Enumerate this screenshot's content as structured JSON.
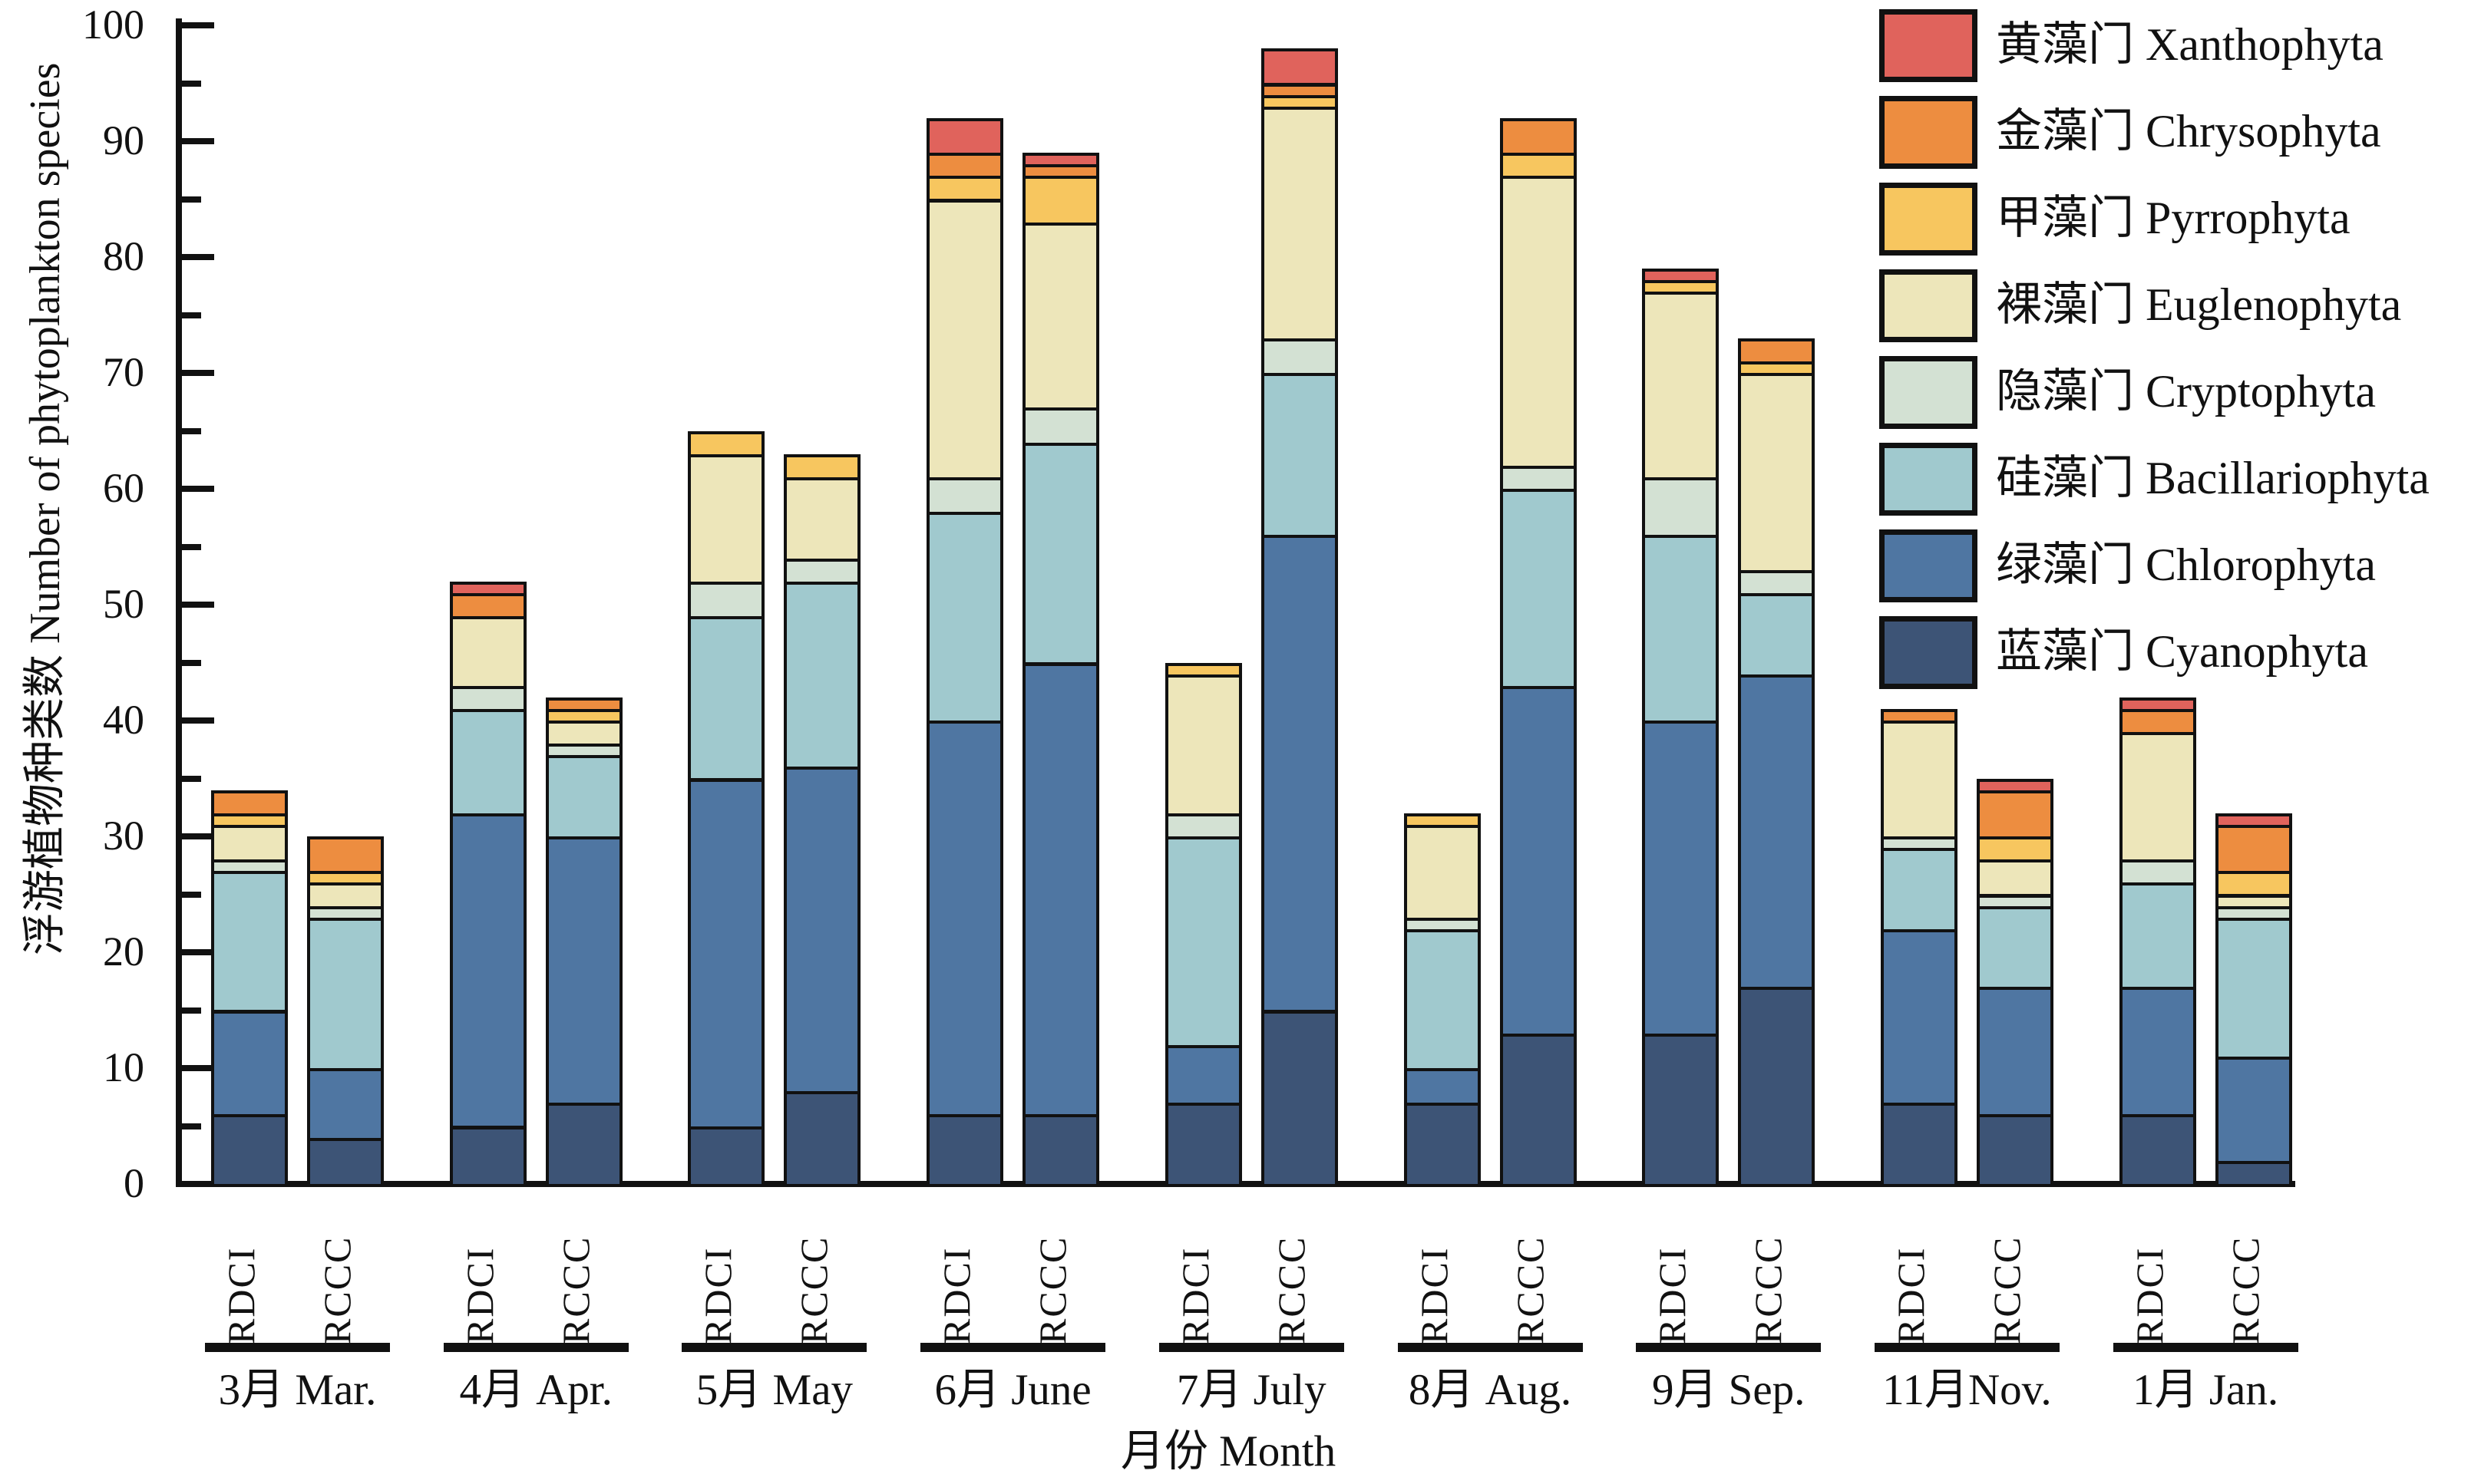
{
  "chart_data": {
    "type": "bar",
    "stacked": true,
    "orientation": "vertical",
    "ylabel": "浮游植物种类数 Number of phytoplankton species",
    "xlabel": "月份 Month",
    "ylim": [
      0,
      100
    ],
    "ytick_step": 10,
    "yminor_step": 5,
    "grid": false,
    "legend_position": "top-right",
    "bar_labels": [
      "RDCI",
      "RCCC"
    ],
    "categories": [
      "3月 Mar.",
      "4月 Apr.",
      "5月 May",
      "6月 June",
      "7月 July",
      "8月 Aug.",
      "9月 Sep.",
      "11月Nov.",
      "1月 Jan."
    ],
    "series": [
      {
        "name_cn": "蓝藻门",
        "name_en": "Cyanophyta",
        "color": "#3D5476",
        "values": {
          "RDCI": [
            6,
            5,
            5,
            6,
            7,
            7,
            13,
            7,
            6
          ],
          "RCCC": [
            4,
            7,
            8,
            6,
            15,
            13,
            17,
            6,
            2
          ]
        }
      },
      {
        "name_cn": "绿藻门",
        "name_en": "Chlorophyta",
        "color": "#4F76A2",
        "values": {
          "RDCI": [
            9,
            27,
            30,
            34,
            5,
            3,
            27,
            15,
            11
          ],
          "RCCC": [
            6,
            23,
            28,
            39,
            41,
            30,
            27,
            11,
            9
          ]
        }
      },
      {
        "name_cn": "硅藻门",
        "name_en": "Bacillariophyta",
        "color": "#A0C9CE",
        "values": {
          "RDCI": [
            12,
            9,
            14,
            18,
            18,
            12,
            16,
            7,
            9
          ],
          "RCCC": [
            13,
            7,
            16,
            19,
            14,
            17,
            7,
            7,
            12
          ]
        }
      },
      {
        "name_cn": "隐藻门",
        "name_en": "Cryptophyta",
        "color": "#D3E1D3",
        "values": {
          "RDCI": [
            1,
            2,
            3,
            3,
            2,
            1,
            5,
            1,
            2
          ],
          "RCCC": [
            1,
            1,
            2,
            3,
            3,
            2,
            2,
            1,
            1
          ]
        }
      },
      {
        "name_cn": "裸藻门",
        "name_en": "Euglenophyta",
        "color": "#EDE6BA",
        "values": {
          "RDCI": [
            3,
            6,
            11,
            24,
            12,
            8,
            16,
            10,
            11
          ],
          "RCCC": [
            2,
            2,
            7,
            16,
            20,
            25,
            17,
            3,
            1
          ]
        }
      },
      {
        "name_cn": "甲藻门",
        "name_en": "Pyrrophyta",
        "color": "#F7C65F",
        "values": {
          "RDCI": [
            1,
            0,
            2,
            2,
            1,
            1,
            1,
            0,
            0
          ],
          "RCCC": [
            1,
            1,
            2,
            4,
            1,
            2,
            1,
            2,
            2
          ]
        }
      },
      {
        "name_cn": "金藻门",
        "name_en": "Chrysophyta",
        "color": "#ED8D40",
        "values": {
          "RDCI": [
            2,
            2,
            0,
            2,
            0,
            0,
            0,
            1,
            2
          ],
          "RCCC": [
            3,
            1,
            0,
            1,
            1,
            3,
            2,
            4,
            4
          ]
        }
      },
      {
        "name_cn": "黄藻门",
        "name_en": "Xanthophyta",
        "color": "#E0635C",
        "values": {
          "RDCI": [
            0,
            1,
            0,
            3,
            0,
            0,
            1,
            0,
            1
          ],
          "RCCC": [
            0,
            0,
            0,
            1,
            3,
            0,
            0,
            1,
            1
          ]
        }
      }
    ],
    "totals": {
      "RDCI": [
        34,
        52,
        65,
        92,
        45,
        32,
        79,
        41,
        42
      ],
      "RCCC": [
        30,
        42,
        63,
        89,
        98,
        92,
        73,
        35,
        32
      ]
    },
    "axis_color": "#111111"
  },
  "labels": {
    "y_axis_title": "浮游植物种类数 Number of phytoplankton species",
    "x_axis_title": "月份  Month"
  }
}
